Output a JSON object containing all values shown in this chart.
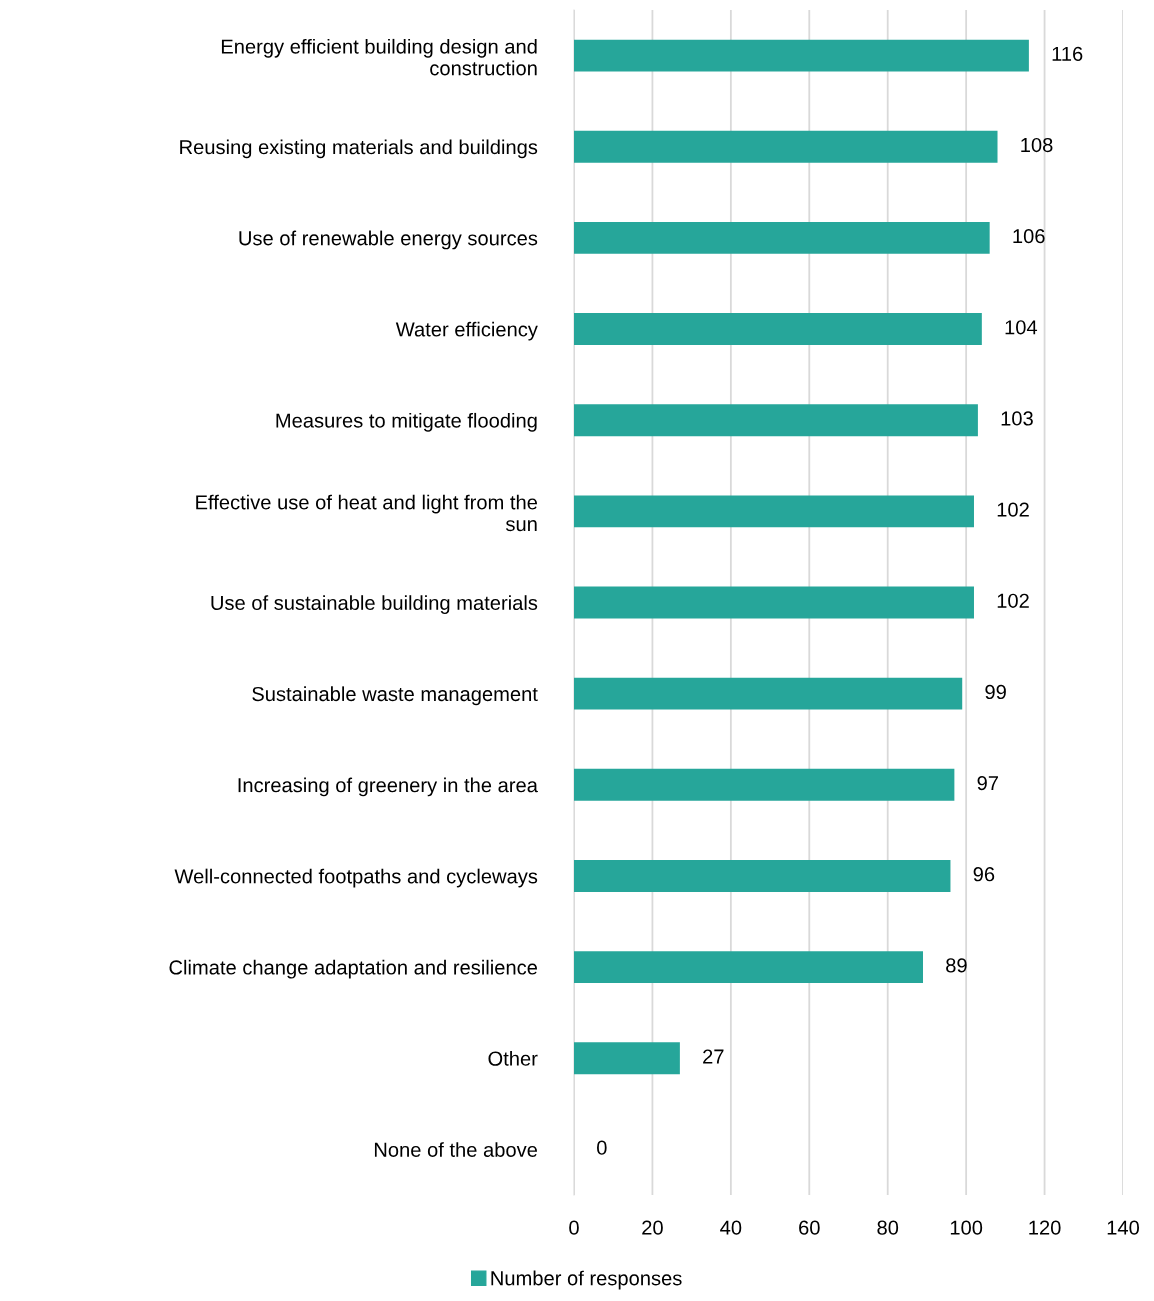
{
  "chart_data": {
    "type": "bar",
    "orientation": "horizontal",
    "categories": [
      "Energy efficient building design and\nconstruction",
      "Reusing existing materials and buildings",
      "Use of renewable energy sources",
      "Water efficiency",
      "Measures to mitigate flooding",
      "Effective use of heat and light from the\nsun",
      "Use of sustainable building materials",
      "Sustainable waste management",
      "Increasing of greenery in the area",
      "Well-connected footpaths and cycleways",
      "Climate change adaptation and resilience",
      "Other",
      "None of the above"
    ],
    "series": [
      {
        "name": "Number of responses",
        "color": "#26a69a",
        "values": [
          116,
          108,
          106,
          104,
          103,
          102,
          102,
          99,
          97,
          96,
          89,
          27,
          0
        ]
      }
    ],
    "xlim": [
      0,
      140
    ],
    "xticks": [
      0,
      20,
      40,
      60,
      80,
      100,
      120,
      140
    ],
    "grid": "x",
    "legend": "bottom",
    "data_labels": true
  }
}
